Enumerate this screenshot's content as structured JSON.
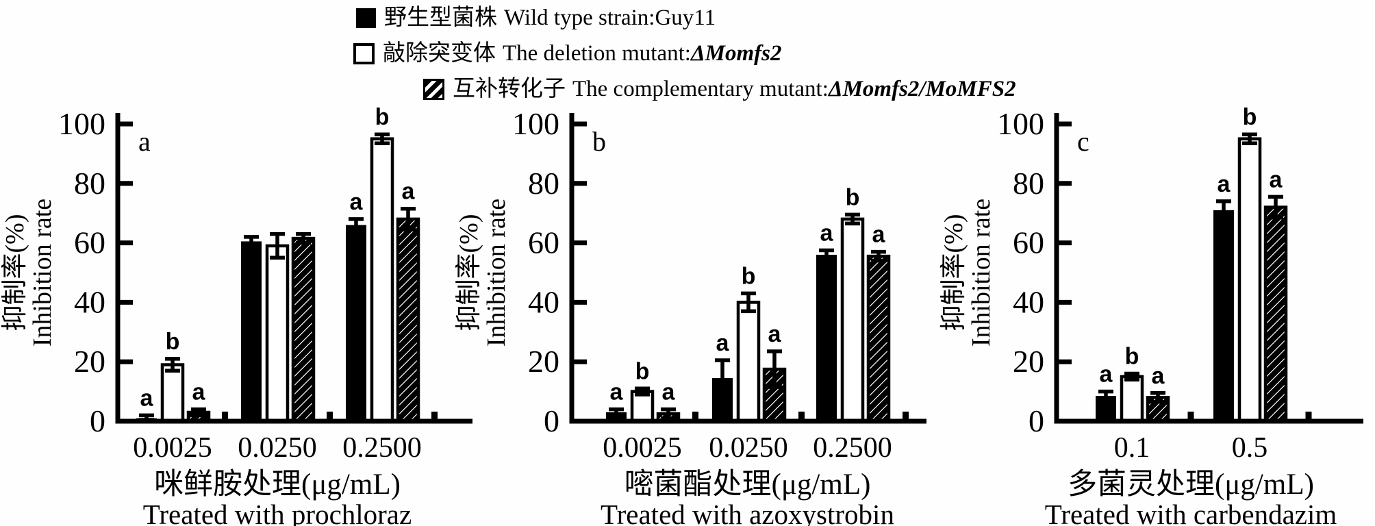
{
  "figure": {
    "background": "#fefefe",
    "ink": "#000000"
  },
  "legend": {
    "items": [
      {
        "swatch": "solid-black-square",
        "cn": "野生型菌株",
        "en": "Wild type strain:",
        "strain": "Guy11",
        "strain_italic": false
      },
      {
        "swatch": "open-square",
        "cn": "敲除突变体",
        "en": "The deletion mutant:",
        "strain": "ΔMomfs2",
        "strain_italic": true
      },
      {
        "swatch": "diagonal-hatch-square",
        "cn": "互补转化子",
        "en": "The complementary mutant:",
        "strain": "ΔMomfs2/MoMFS2",
        "strain_italic": true
      }
    ]
  },
  "chart_data": [
    {
      "type": "bar",
      "panel_label": "a",
      "categories": [
        "0.0025",
        "0.0250",
        "0.2500"
      ],
      "series": [
        {
          "name": "Wild type strain:Guy11",
          "fill": "solid",
          "values": [
            1,
            60.5,
            66
          ],
          "errors": [
            1,
            1.5,
            2
          ],
          "letters": [
            "a",
            "",
            "a"
          ]
        },
        {
          "name": "The deletion mutant:ΔMomfs2",
          "fill": "open",
          "values": [
            19,
            59,
            95
          ],
          "errors": [
            2,
            4,
            1.5
          ],
          "letters": [
            "b",
            "",
            "b"
          ]
        },
        {
          "name": "The complementary mutant:ΔMomfs2/MoMFS2",
          "fill": "hatch",
          "values": [
            3,
            61.5,
            68
          ],
          "errors": [
            1,
            1.5,
            3.5
          ],
          "letters": [
            "a",
            "",
            "a"
          ]
        }
      ],
      "ylabel_cn": "抑制率(%)",
      "ylabel_en": "Inhibition rate",
      "xlabel_cn": "咪鲜胺处理(μg/mL)",
      "xlabel_en": "Treated with prochloraz",
      "ylim": [
        0,
        100
      ],
      "yticks": [
        0,
        20,
        40,
        60,
        80,
        100
      ],
      "grid": false,
      "legend_position": "top"
    },
    {
      "type": "bar",
      "panel_label": "b",
      "categories": [
        "0.0025",
        "0.0250",
        "0.2500"
      ],
      "series": [
        {
          "name": "Wild type strain:Guy11",
          "fill": "solid",
          "values": [
            3,
            14.5,
            56
          ],
          "errors": [
            1,
            6,
            1.5
          ],
          "letters": [
            "a",
            "a",
            "a"
          ]
        },
        {
          "name": "The deletion mutant:ΔMomfs2",
          "fill": "open",
          "values": [
            10,
            40,
            68
          ],
          "errors": [
            1,
            3,
            1.5
          ],
          "letters": [
            "b",
            "b",
            "b"
          ]
        },
        {
          "name": "The complementary mutant:ΔMomfs2/MoMFS2",
          "fill": "hatch",
          "values": [
            2.5,
            17.5,
            55.5
          ],
          "errors": [
            1.5,
            6,
            1.5
          ],
          "letters": [
            "a",
            "a",
            "a"
          ]
        }
      ],
      "ylabel_cn": "抑制率(%)",
      "ylabel_en": "Inhibition rate",
      "xlabel_cn": "嘧菌酯处理(μg/mL)",
      "xlabel_en": "Treated with azoxystrobin",
      "ylim": [
        0,
        100
      ],
      "yticks": [
        0,
        20,
        40,
        60,
        80,
        100
      ],
      "grid": false,
      "legend_position": "top"
    },
    {
      "type": "bar",
      "panel_label": "c",
      "categories": [
        "0.1",
        "0.5"
      ],
      "series": [
        {
          "name": "Wild type strain:Guy11",
          "fill": "solid",
          "values": [
            8.5,
            71
          ],
          "errors": [
            1.5,
            3
          ],
          "letters": [
            "a",
            "a"
          ]
        },
        {
          "name": "The deletion mutant:ΔMomfs2",
          "fill": "open",
          "values": [
            15,
            95
          ],
          "errors": [
            1,
            1.5
          ],
          "letters": [
            "b",
            "b"
          ]
        },
        {
          "name": "The complementary mutant:ΔMomfs2/MoMFS2",
          "fill": "hatch",
          "values": [
            8,
            72
          ],
          "errors": [
            1.5,
            3.5
          ],
          "letters": [
            "a",
            "a"
          ]
        }
      ],
      "ylabel_cn": "抑制率(%)",
      "ylabel_en": "Inhibition rate",
      "xlabel_cn": "多菌灵处理(μg/mL)",
      "xlabel_en": "Treated with carbendazim",
      "ylim": [
        0,
        100
      ],
      "yticks": [
        0,
        20,
        40,
        60,
        80,
        100
      ],
      "grid": false,
      "legend_position": "top"
    }
  ]
}
